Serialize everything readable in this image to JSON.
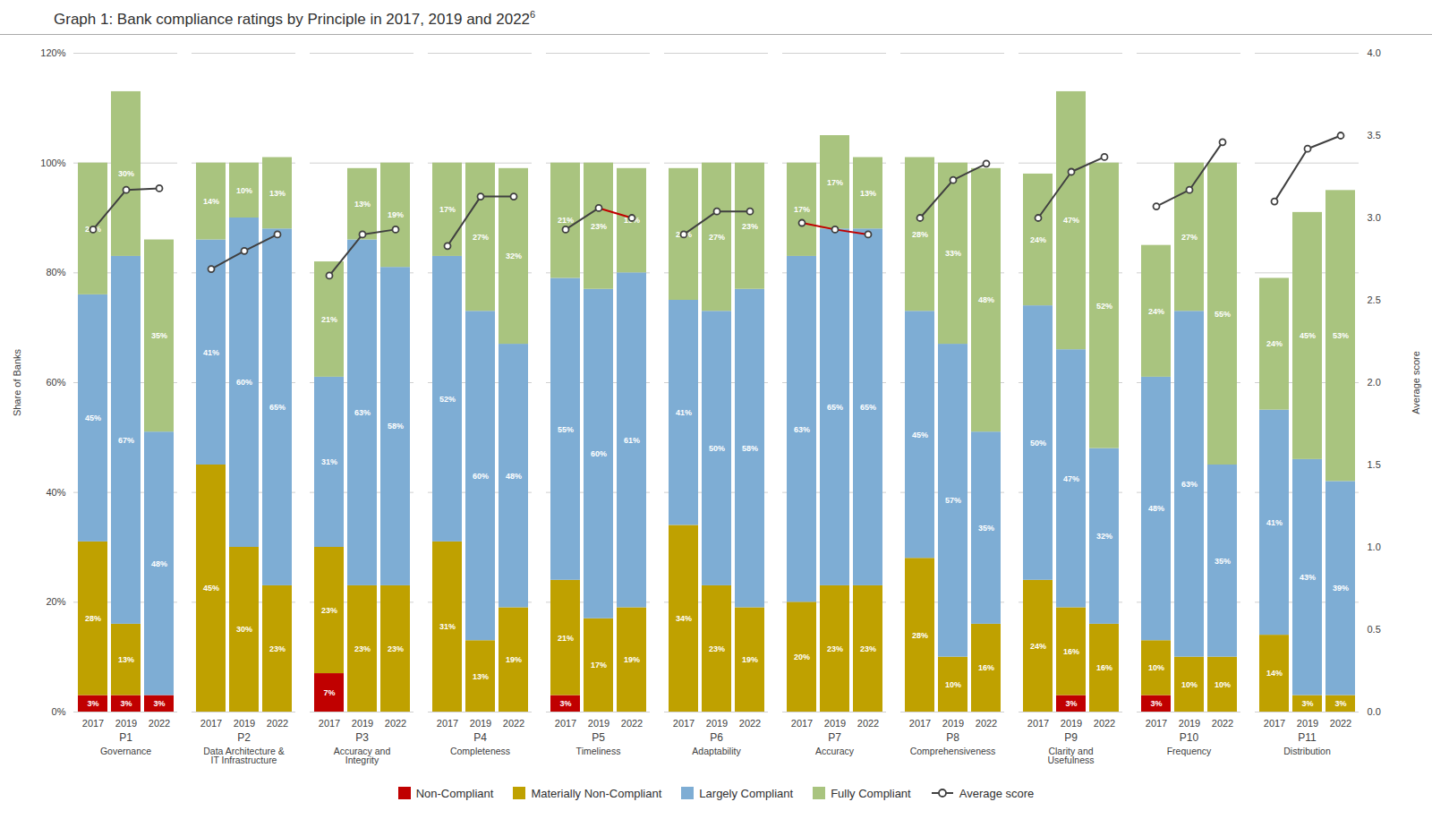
{
  "chart_data": {
    "type": "bar",
    "stacked": true,
    "data_labels": true,
    "grid": true,
    "legend": "bottom",
    "title": "Graph 1: Bank compliance ratings by Principle in 2017, 2019 and 2022",
    "annotations": [
      "6"
    ],
    "categories": [
      "P1",
      "P2",
      "P3",
      "P4",
      "P5",
      "P6",
      "P7",
      "P8",
      "P9",
      "P10",
      "P11"
    ],
    "category_names": [
      "Governance",
      "Data Architecture &\nIT Infrastructure",
      "Accuracy and\nIntegrity",
      "Completeness",
      "Timeliness",
      "Adaptability",
      "Accuracy",
      "Comprehensiveness",
      "Clarity and\nUsefulness",
      "Frequency",
      "Distribution"
    ],
    "subcategories": [
      "2017",
      "2019",
      "2022"
    ],
    "ylabel": "Share of Banks",
    "ylim": [
      0,
      120
    ],
    "yticks": [
      {
        "value": 0,
        "label": "0%"
      },
      {
        "value": 20,
        "label": "20%"
      },
      {
        "value": 40,
        "label": "40%"
      },
      {
        "value": 60,
        "label": "60%"
      },
      {
        "value": 80,
        "label": "80%"
      },
      {
        "value": 100,
        "label": "100%"
      },
      {
        "value": 120,
        "label": "120%"
      }
    ],
    "y2label": "Average score",
    "y2lim": [
      0,
      4.0
    ],
    "y2ticks": [
      {
        "value": 0,
        "label": "0.0"
      },
      {
        "value": 0.5,
        "label": "0.5"
      },
      {
        "value": 1.0,
        "label": "1.0"
      },
      {
        "value": 1.5,
        "label": "1.5"
      },
      {
        "value": 2.0,
        "label": "2.0"
      },
      {
        "value": 2.5,
        "label": "2.5"
      },
      {
        "value": 3.0,
        "label": "3.0"
      },
      {
        "value": 3.5,
        "label": "3.5"
      },
      {
        "value": 4.0,
        "label": "4.0"
      }
    ],
    "series": [
      {
        "name": "Non-Compliant",
        "type": "bar",
        "color": "#C00000",
        "values": [
          [
            3,
            3,
            3
          ],
          [
            0,
            0,
            0
          ],
          [
            7,
            0,
            0
          ],
          [
            0,
            0,
            0
          ],
          [
            3,
            0,
            0
          ],
          [
            0,
            0,
            0
          ],
          [
            0,
            0,
            0
          ],
          [
            0,
            0,
            0
          ],
          [
            0,
            3,
            0
          ],
          [
            3,
            0,
            0
          ],
          [
            0,
            0,
            0
          ]
        ],
        "value_labels": [
          [
            "3%",
            "3%",
            "3%"
          ],
          [
            null,
            null,
            null
          ],
          [
            "7%",
            null,
            null
          ],
          [
            null,
            null,
            null
          ],
          [
            "3%",
            null,
            null
          ],
          [
            null,
            null,
            null
          ],
          [
            null,
            null,
            null
          ],
          [
            null,
            null,
            null
          ],
          [
            null,
            "3%",
            null
          ],
          [
            "3%",
            null,
            null
          ],
          [
            null,
            null,
            null
          ]
        ]
      },
      {
        "name": "Materially Non-Compliant",
        "type": "bar",
        "color": "#BFA100",
        "values": [
          [
            28,
            13,
            0
          ],
          [
            45,
            30,
            23
          ],
          [
            23,
            23,
            23
          ],
          [
            31,
            13,
            19
          ],
          [
            21,
            17,
            19
          ],
          [
            34,
            23,
            19
          ],
          [
            20,
            23,
            23
          ],
          [
            28,
            10,
            16
          ],
          [
            24,
            16,
            16
          ],
          [
            10,
            10,
            10
          ],
          [
            14,
            3,
            3
          ]
        ],
        "value_labels": [
          [
            "28%",
            "13%",
            null
          ],
          [
            "45%",
            "30%",
            "23%"
          ],
          [
            "23%",
            "23%",
            "23%"
          ],
          [
            "31%",
            "13%",
            "19%"
          ],
          [
            "21%",
            "17%",
            "19%"
          ],
          [
            "34%",
            "23%",
            "19%"
          ],
          [
            "20%",
            "23%",
            "23%"
          ],
          [
            "28%",
            "10%",
            "16%"
          ],
          [
            "24%",
            "16%",
            "16%"
          ],
          [
            "10%",
            "10%",
            "10%"
          ],
          [
            "14%",
            "3%",
            "3%"
          ]
        ]
      },
      {
        "name": "Largely Compliant",
        "type": "bar",
        "color": "#7EADD4",
        "values": [
          [
            45,
            67,
            48
          ],
          [
            41,
            60,
            65
          ],
          [
            31,
            63,
            58
          ],
          [
            52,
            60,
            48
          ],
          [
            55,
            60,
            61
          ],
          [
            41,
            50,
            58
          ],
          [
            63,
            65,
            65
          ],
          [
            45,
            57,
            35
          ],
          [
            50,
            47,
            32
          ],
          [
            48,
            63,
            35
          ],
          [
            41,
            43,
            39
          ]
        ],
        "value_labels": [
          [
            "45%",
            "67%",
            "48%"
          ],
          [
            "41%",
            "60%",
            "65%"
          ],
          [
            "31%",
            "63%",
            "58%"
          ],
          [
            "52%",
            "60%",
            "48%"
          ],
          [
            "55%",
            "60%",
            "61%"
          ],
          [
            "41%",
            "50%",
            "58%"
          ],
          [
            "63%",
            "65%",
            "65%"
          ],
          [
            "45%",
            "57%",
            "35%"
          ],
          [
            "50%",
            "47%",
            "32%"
          ],
          [
            "48%",
            "63%",
            "35%"
          ],
          [
            "41%",
            "43%",
            "39%"
          ]
        ]
      },
      {
        "name": "Fully Compliant",
        "type": "bar",
        "color": "#A9C47F",
        "values": [
          [
            24,
            30,
            35
          ],
          [
            14,
            10,
            13
          ],
          [
            21,
            13,
            19
          ],
          [
            17,
            27,
            32
          ],
          [
            21,
            23,
            19
          ],
          [
            24,
            27,
            23
          ],
          [
            17,
            17,
            13
          ],
          [
            28,
            33,
            48
          ],
          [
            24,
            47,
            52
          ],
          [
            24,
            27,
            55
          ],
          [
            24,
            45,
            53
          ]
        ],
        "value_labels": [
          [
            "24%",
            "30%",
            "35%"
          ],
          [
            "14%",
            "10%",
            "13%"
          ],
          [
            "21%",
            "13%",
            "19%"
          ],
          [
            "17%",
            "27%",
            "32%"
          ],
          [
            "21%",
            "23%",
            "19%"
          ],
          [
            "24%",
            "27%",
            "23%"
          ],
          [
            "17%",
            "17%",
            "13%"
          ],
          [
            "28%",
            "33%",
            "48%"
          ],
          [
            "24%",
            "47%",
            "52%"
          ],
          [
            "24%",
            "27%",
            "55%"
          ],
          [
            "24%",
            "45%",
            "53%"
          ]
        ]
      },
      {
        "name": "Average score",
        "type": "line",
        "axis": "y2",
        "color": "#404040",
        "marker": "circle",
        "line_style": "solid",
        "values": [
          [
            2.93,
            3.17,
            3.18
          ],
          [
            2.69,
            2.8,
            2.9
          ],
          [
            2.65,
            2.9,
            2.93
          ],
          [
            2.83,
            3.13,
            3.13
          ],
          [
            2.93,
            3.06,
            3.0
          ],
          [
            2.9,
            3.04,
            3.04
          ],
          [
            2.97,
            2.93,
            2.9
          ],
          [
            3.0,
            3.23,
            3.33
          ],
          [
            3.0,
            3.28,
            3.37
          ],
          [
            3.07,
            3.17,
            3.46
          ],
          [
            3.1,
            3.42,
            3.5
          ]
        ],
        "colors": [
          [
            "#404040",
            "#404040"
          ],
          [
            "#404040",
            "#404040"
          ],
          [
            "#404040",
            "#404040"
          ],
          [
            "#404040",
            "#404040"
          ],
          [
            "#404040",
            "#C00000"
          ],
          [
            "#404040",
            "#404040"
          ],
          [
            "#C00000",
            "#C00000"
          ],
          [
            "#404040",
            "#404040"
          ],
          [
            "#404040",
            "#404040"
          ],
          [
            "#404040",
            "#404040"
          ],
          [
            "#404040",
            "#404040"
          ]
        ]
      }
    ]
  }
}
